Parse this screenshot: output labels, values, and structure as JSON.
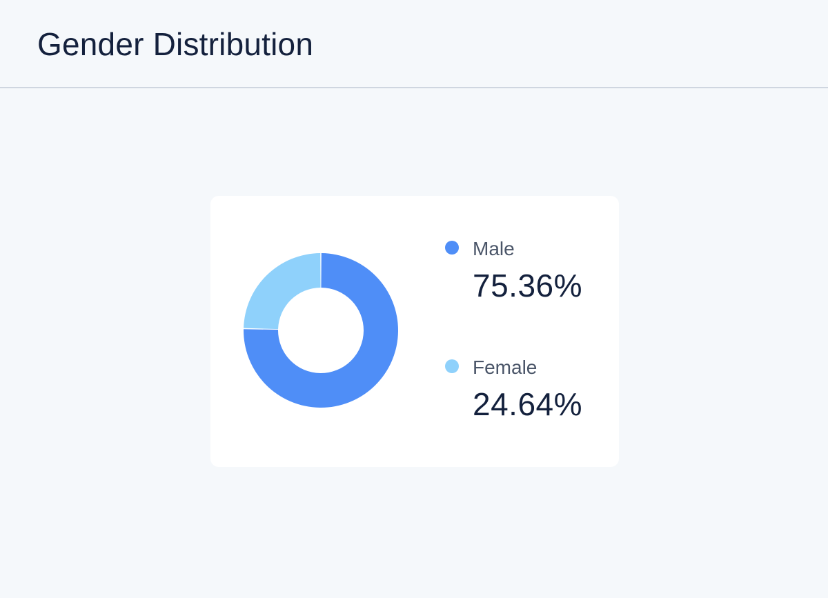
{
  "title": "Gender Distribution",
  "colors": {
    "male": "#4f8ef7",
    "female": "#8fd1fb"
  },
  "chart_data": {
    "type": "pie",
    "categories": [
      "Male",
      "Female"
    ],
    "values": [
      75.36,
      24.64
    ],
    "value_labels": [
      "75.36%",
      "24.64%"
    ],
    "colors": [
      "#4f8ef7",
      "#8fd1fb"
    ],
    "donut": true,
    "legend": "right"
  }
}
